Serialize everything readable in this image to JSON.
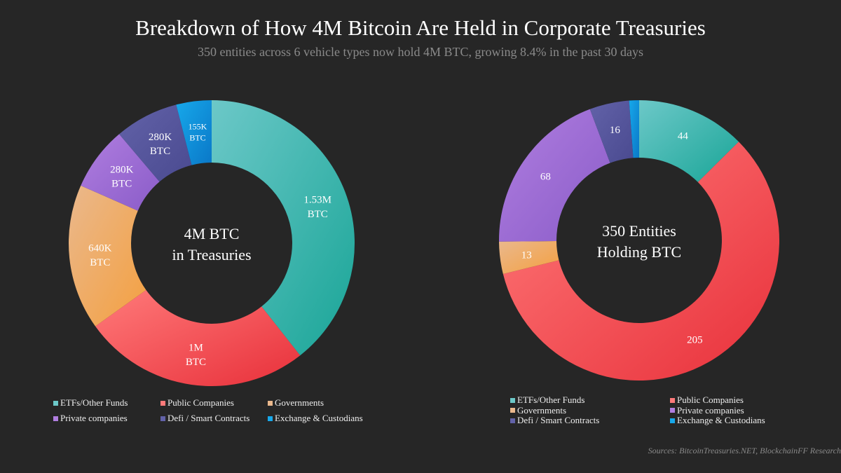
{
  "title": "Breakdown of How 4M Bitcoin Are Held in Corporate Treasuries",
  "subtitle": "350 entities across 6 vehicle types now hold 4M BTC, growing 8.4% in the past 30 days",
  "source": "Sources: BitcoinTreasuries.NET, BlockchainFF Research",
  "colors": {
    "ETFs/Other Funds": [
      "#6cc8c8",
      "#19a597"
    ],
    "Public Companies": [
      "#ff7a7a",
      "#e8303a"
    ],
    "Governments": [
      "#eab88c",
      "#f4a040"
    ],
    "Private companies": [
      "#b07ee0",
      "#8a5cc8"
    ],
    "Defi / Smart Contracts": [
      "#6262a8",
      "#4a4a90"
    ],
    "Exchange & Custodians": [
      "#17a8ea",
      "#0a78c8"
    ]
  },
  "chart_data": [
    {
      "type": "pie",
      "donut": true,
      "center_label": [
        "4M BTC",
        "in Treasuries"
      ],
      "legend": [
        "ETFs/Other Funds",
        "Public Companies",
        "Governments",
        "Private companies",
        "Defi / Smart Contracts",
        "Exchange & Custodians"
      ],
      "unit": "BTC",
      "slices": [
        {
          "name": "ETFs/Other Funds",
          "value": 1530000,
          "label": "1.53M BTC"
        },
        {
          "name": "Public Companies",
          "value": 1000000,
          "label": "1M BTC"
        },
        {
          "name": "Governments",
          "value": 640000,
          "label": "640K BTC"
        },
        {
          "name": "Private companies",
          "value": 280000,
          "label": "280K BTC"
        },
        {
          "name": "Defi / Smart Contracts",
          "value": 280000,
          "label": "280K BTC"
        },
        {
          "name": "Exchange & Custodians",
          "value": 155000,
          "label": "155K BTC"
        }
      ]
    },
    {
      "type": "pie",
      "donut": true,
      "center_label": [
        "350 Entities",
        "Holding BTC"
      ],
      "legend": [
        "ETFs/Other Funds",
        "Public Companies",
        "Governments",
        "Private companies",
        "Defi / Smart Contracts",
        "Exchange & Custodians"
      ],
      "slices": [
        {
          "name": "ETFs/Other Funds",
          "value": 44,
          "label": "44"
        },
        {
          "name": "Public Companies",
          "value": 205,
          "label": "205"
        },
        {
          "name": "Governments",
          "value": 13,
          "label": "13"
        },
        {
          "name": "Private companies",
          "value": 68,
          "label": "68"
        },
        {
          "name": "Defi / Smart Contracts",
          "value": 16,
          "label": "16"
        },
        {
          "name": "Exchange & Custodians",
          "value": 4,
          "label": ""
        }
      ]
    }
  ]
}
